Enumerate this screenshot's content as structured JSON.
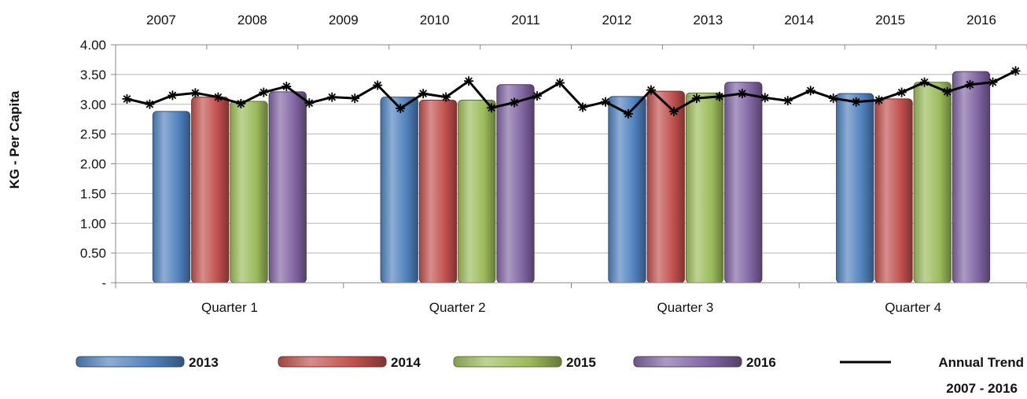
{
  "chart_data": {
    "type": "bar",
    "ylabel": "KG - Per Capita",
    "ylim": [
      0,
      4
    ],
    "y_ticks": [
      "-",
      "0.50",
      "1.00",
      "1.50",
      "2.00",
      "2.50",
      "3.00",
      "3.50",
      "4.00"
    ],
    "y_tick_values": [
      0,
      0.5,
      1,
      1.5,
      2,
      2.5,
      3,
      3.5,
      4
    ],
    "categories": [
      "Quarter 1",
      "Quarter 2",
      "Quarter 3",
      "Quarter 4"
    ],
    "series": [
      {
        "name": "2013",
        "values": [
          2.88,
          3.12,
          3.13,
          3.18
        ]
      },
      {
        "name": "2014",
        "values": [
          3.12,
          3.07,
          3.22,
          3.09
        ]
      },
      {
        "name": "2015",
        "values": [
          3.05,
          3.07,
          3.19,
          3.37
        ]
      },
      {
        "name": "2016",
        "values": [
          3.21,
          3.33,
          3.37,
          3.55
        ]
      }
    ],
    "trend": {
      "name": "Annual Trend",
      "name_sub": "2007 - 2016",
      "secondary_x_labels": [
        "2007",
        "2008",
        "2009",
        "2010",
        "2011",
        "2012",
        "2013",
        "2014",
        "2015",
        "2016"
      ],
      "values": [
        3.09,
        3.0,
        3.15,
        3.19,
        3.12,
        3.01,
        3.2,
        3.3,
        3.02,
        3.12,
        3.1,
        3.32,
        2.93,
        3.18,
        3.12,
        3.39,
        2.94,
        3.03,
        3.14,
        3.36,
        2.95,
        3.04,
        2.84,
        3.24,
        2.88,
        3.1,
        3.13,
        3.18,
        3.11,
        3.06,
        3.23,
        3.1,
        3.04,
        3.07,
        3.2,
        3.37,
        3.21,
        3.33,
        3.37,
        3.56
      ]
    },
    "colors": {
      "2013": "#4f81bd",
      "2014": "#c0504d",
      "2015": "#9bbb59",
      "2016": "#8064a2",
      "trend": "#000000"
    },
    "legend_position": "bottom",
    "grid": true
  }
}
